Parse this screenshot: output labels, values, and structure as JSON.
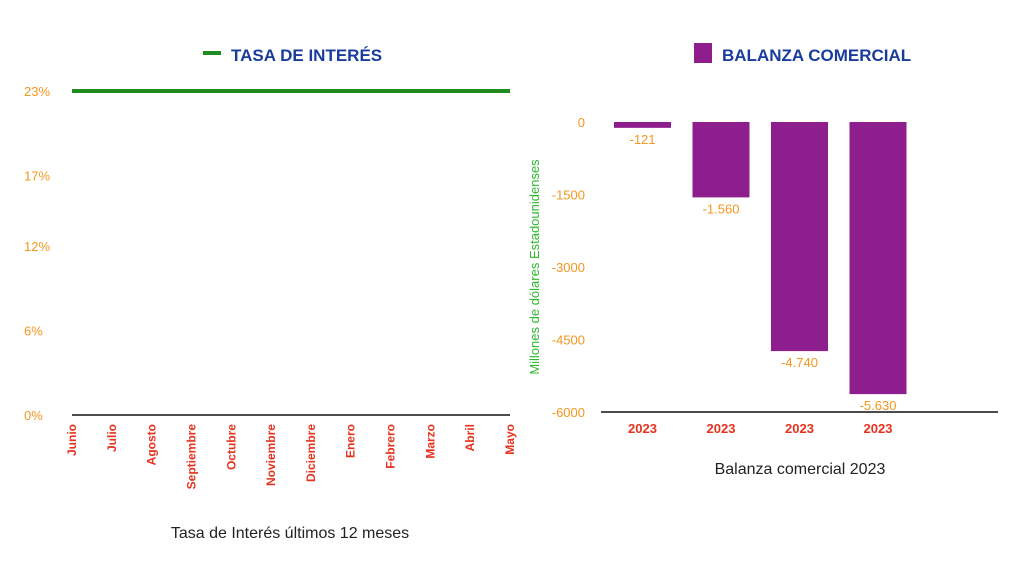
{
  "charts": [
    {
      "type": "line",
      "title": "TASA DE INTERÉS",
      "caption": "Tasa de Interés últimos 12 meses",
      "categories": [
        "Junio",
        "Julio",
        "Agosto",
        "Septiembre",
        "Octubre",
        "Noviembre",
        "Diciembre",
        "Enero",
        "Febrero",
        "Marzo",
        "Abril",
        "Mayo"
      ],
      "yticks": [
        "0%",
        "6%",
        "12%",
        "17%",
        "23%"
      ],
      "ytick_values": [
        0,
        6,
        12,
        17,
        23
      ],
      "ylim": [
        0,
        23
      ],
      "series": [
        {
          "values": [
            23,
            23,
            23,
            23,
            23,
            23,
            23,
            23,
            23,
            23,
            23,
            23
          ]
        }
      ],
      "colors": {
        "series": "#1f8c1f",
        "title": "#1a3c9c",
        "ticks": "#f5961e",
        "categories": "#e6321e",
        "caption": "#222222"
      }
    },
    {
      "type": "bar",
      "title": "BALANZA COMERCIAL",
      "caption": "Balanza comercial 2023",
      "ylabel": "Millones de dólares Estadounidenses",
      "categories": [
        "2023",
        "2023",
        "2023",
        "2023"
      ],
      "values": [
        -121,
        -1560,
        -4740,
        -5630
      ],
      "data_labels": [
        "-121",
        "-1.560",
        "-4.740",
        "-5.630"
      ],
      "yticks": [
        "0",
        "-1500",
        "-3000",
        "-4500",
        "-6000"
      ],
      "ytick_values": [
        0,
        -1500,
        -3000,
        -4500,
        -6000
      ],
      "ylim": [
        -6000,
        0
      ],
      "colors": {
        "bar": "#8e1e8e",
        "title": "#1a3c9c",
        "ticks": "#f5961e",
        "labels": "#f5961e",
        "categories": "#e6321e",
        "ylabel": "#2eb82e",
        "caption": "#222222"
      }
    }
  ]
}
